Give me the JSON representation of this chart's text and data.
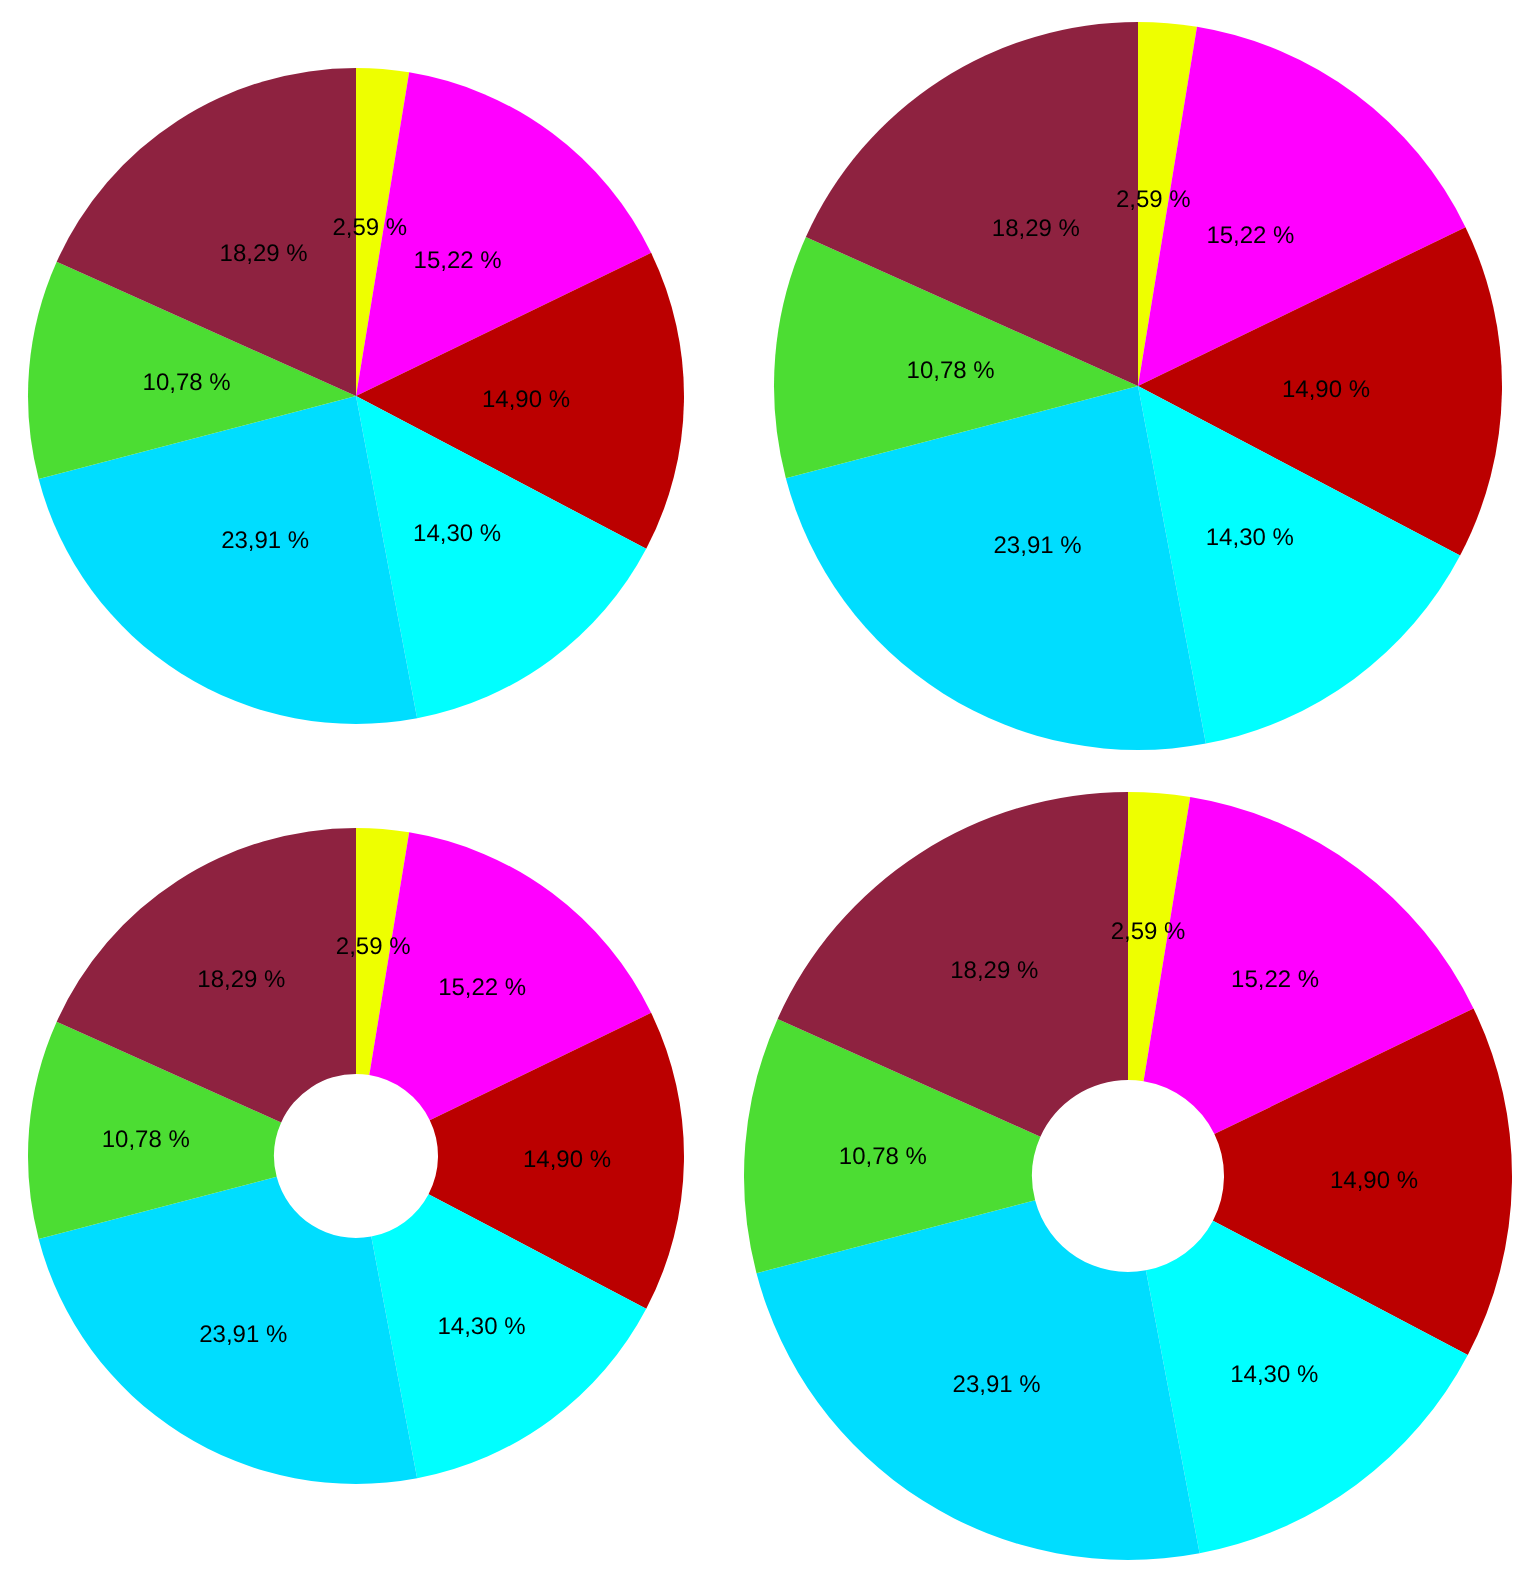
{
  "chart_data": [
    {
      "type": "pie",
      "categories": [
        null,
        null,
        null,
        null,
        null,
        null,
        null
      ],
      "values": [
        2.59,
        15.22,
        14.9,
        14.3,
        23.91,
        10.78,
        18.29
      ],
      "colors": [
        "#eeff00",
        "#ff00ff",
        "#bb0000",
        "#00ffff",
        "#00ddff",
        "#4cdd33",
        "#8e2240"
      ],
      "value_labels": [
        "2,59 %",
        "15,22 %",
        "14,90 %",
        "14,30 %",
        "23,91 %",
        "10,78 %",
        "18,29 %"
      ]
    },
    {
      "type": "pie",
      "categories": [
        null,
        null,
        null,
        null,
        null,
        null,
        null
      ],
      "values": [
        2.59,
        15.22,
        14.9,
        14.3,
        23.91,
        10.78,
        18.29
      ],
      "colors": [
        "#eeff00",
        "#ff00ff",
        "#bb0000",
        "#00ffff",
        "#00ddff",
        "#4cdd33",
        "#8e2240"
      ],
      "value_labels": [
        "2,59 %",
        "15,22 %",
        "14,90 %",
        "14,30 %",
        "23,91 %",
        "10,78 %",
        "18,29 %"
      ]
    },
    {
      "type": "donut",
      "categories": [
        null,
        null,
        null,
        null,
        null,
        null,
        null
      ],
      "values": [
        2.59,
        15.22,
        14.9,
        14.3,
        23.91,
        10.78,
        18.29
      ],
      "colors": [
        "#eeff00",
        "#ff00ff",
        "#bb0000",
        "#00ffff",
        "#00ddff",
        "#4cdd33",
        "#8e2240"
      ],
      "value_labels": [
        "2,59 %",
        "15,22 %",
        "14,90 %",
        "14,30 %",
        "23,91 %",
        "10,78 %",
        "18,29 %"
      ]
    },
    {
      "type": "donut",
      "categories": [
        null,
        null,
        null,
        null,
        null,
        null,
        null
      ],
      "values": [
        2.59,
        15.22,
        14.9,
        14.3,
        23.91,
        10.78,
        18.29
      ],
      "colors": [
        "#eeff00",
        "#ff00ff",
        "#bb0000",
        "#00ffff",
        "#00ddff",
        "#4cdd33",
        "#8e2240"
      ],
      "value_labels": [
        "2,59 %",
        "15,22 %",
        "14,90 %",
        "14,30 %",
        "23,91 %",
        "10,78 %",
        "18,29 %"
      ]
    }
  ]
}
